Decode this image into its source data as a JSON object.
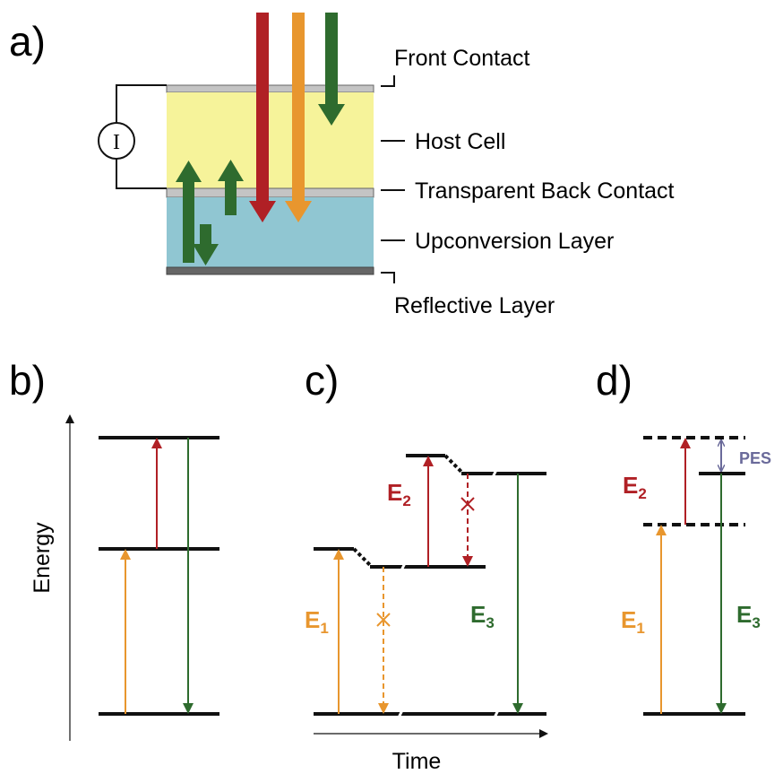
{
  "panels": {
    "a": {
      "label": "a)",
      "current_symbol": "I",
      "layers": [
        "Front Contact",
        "Host Cell",
        "Transparent Back Contact",
        "Upconversion Layer",
        "Reflective Layer"
      ]
    },
    "b": {
      "label": "b)",
      "y_axis": "Energy"
    },
    "c": {
      "label": "c)",
      "x_axis": "Time",
      "transitions": [
        {
          "symbol": "E",
          "subscript": "1"
        },
        {
          "symbol": "E",
          "subscript": "2"
        },
        {
          "symbol": "E",
          "subscript": "3"
        }
      ]
    },
    "d": {
      "label": "d)",
      "annotation": "PES",
      "transitions": [
        {
          "symbol": "E",
          "subscript": "1"
        },
        {
          "symbol": "E",
          "subscript": "2"
        },
        {
          "symbol": "E",
          "subscript": "3"
        }
      ]
    }
  }
}
